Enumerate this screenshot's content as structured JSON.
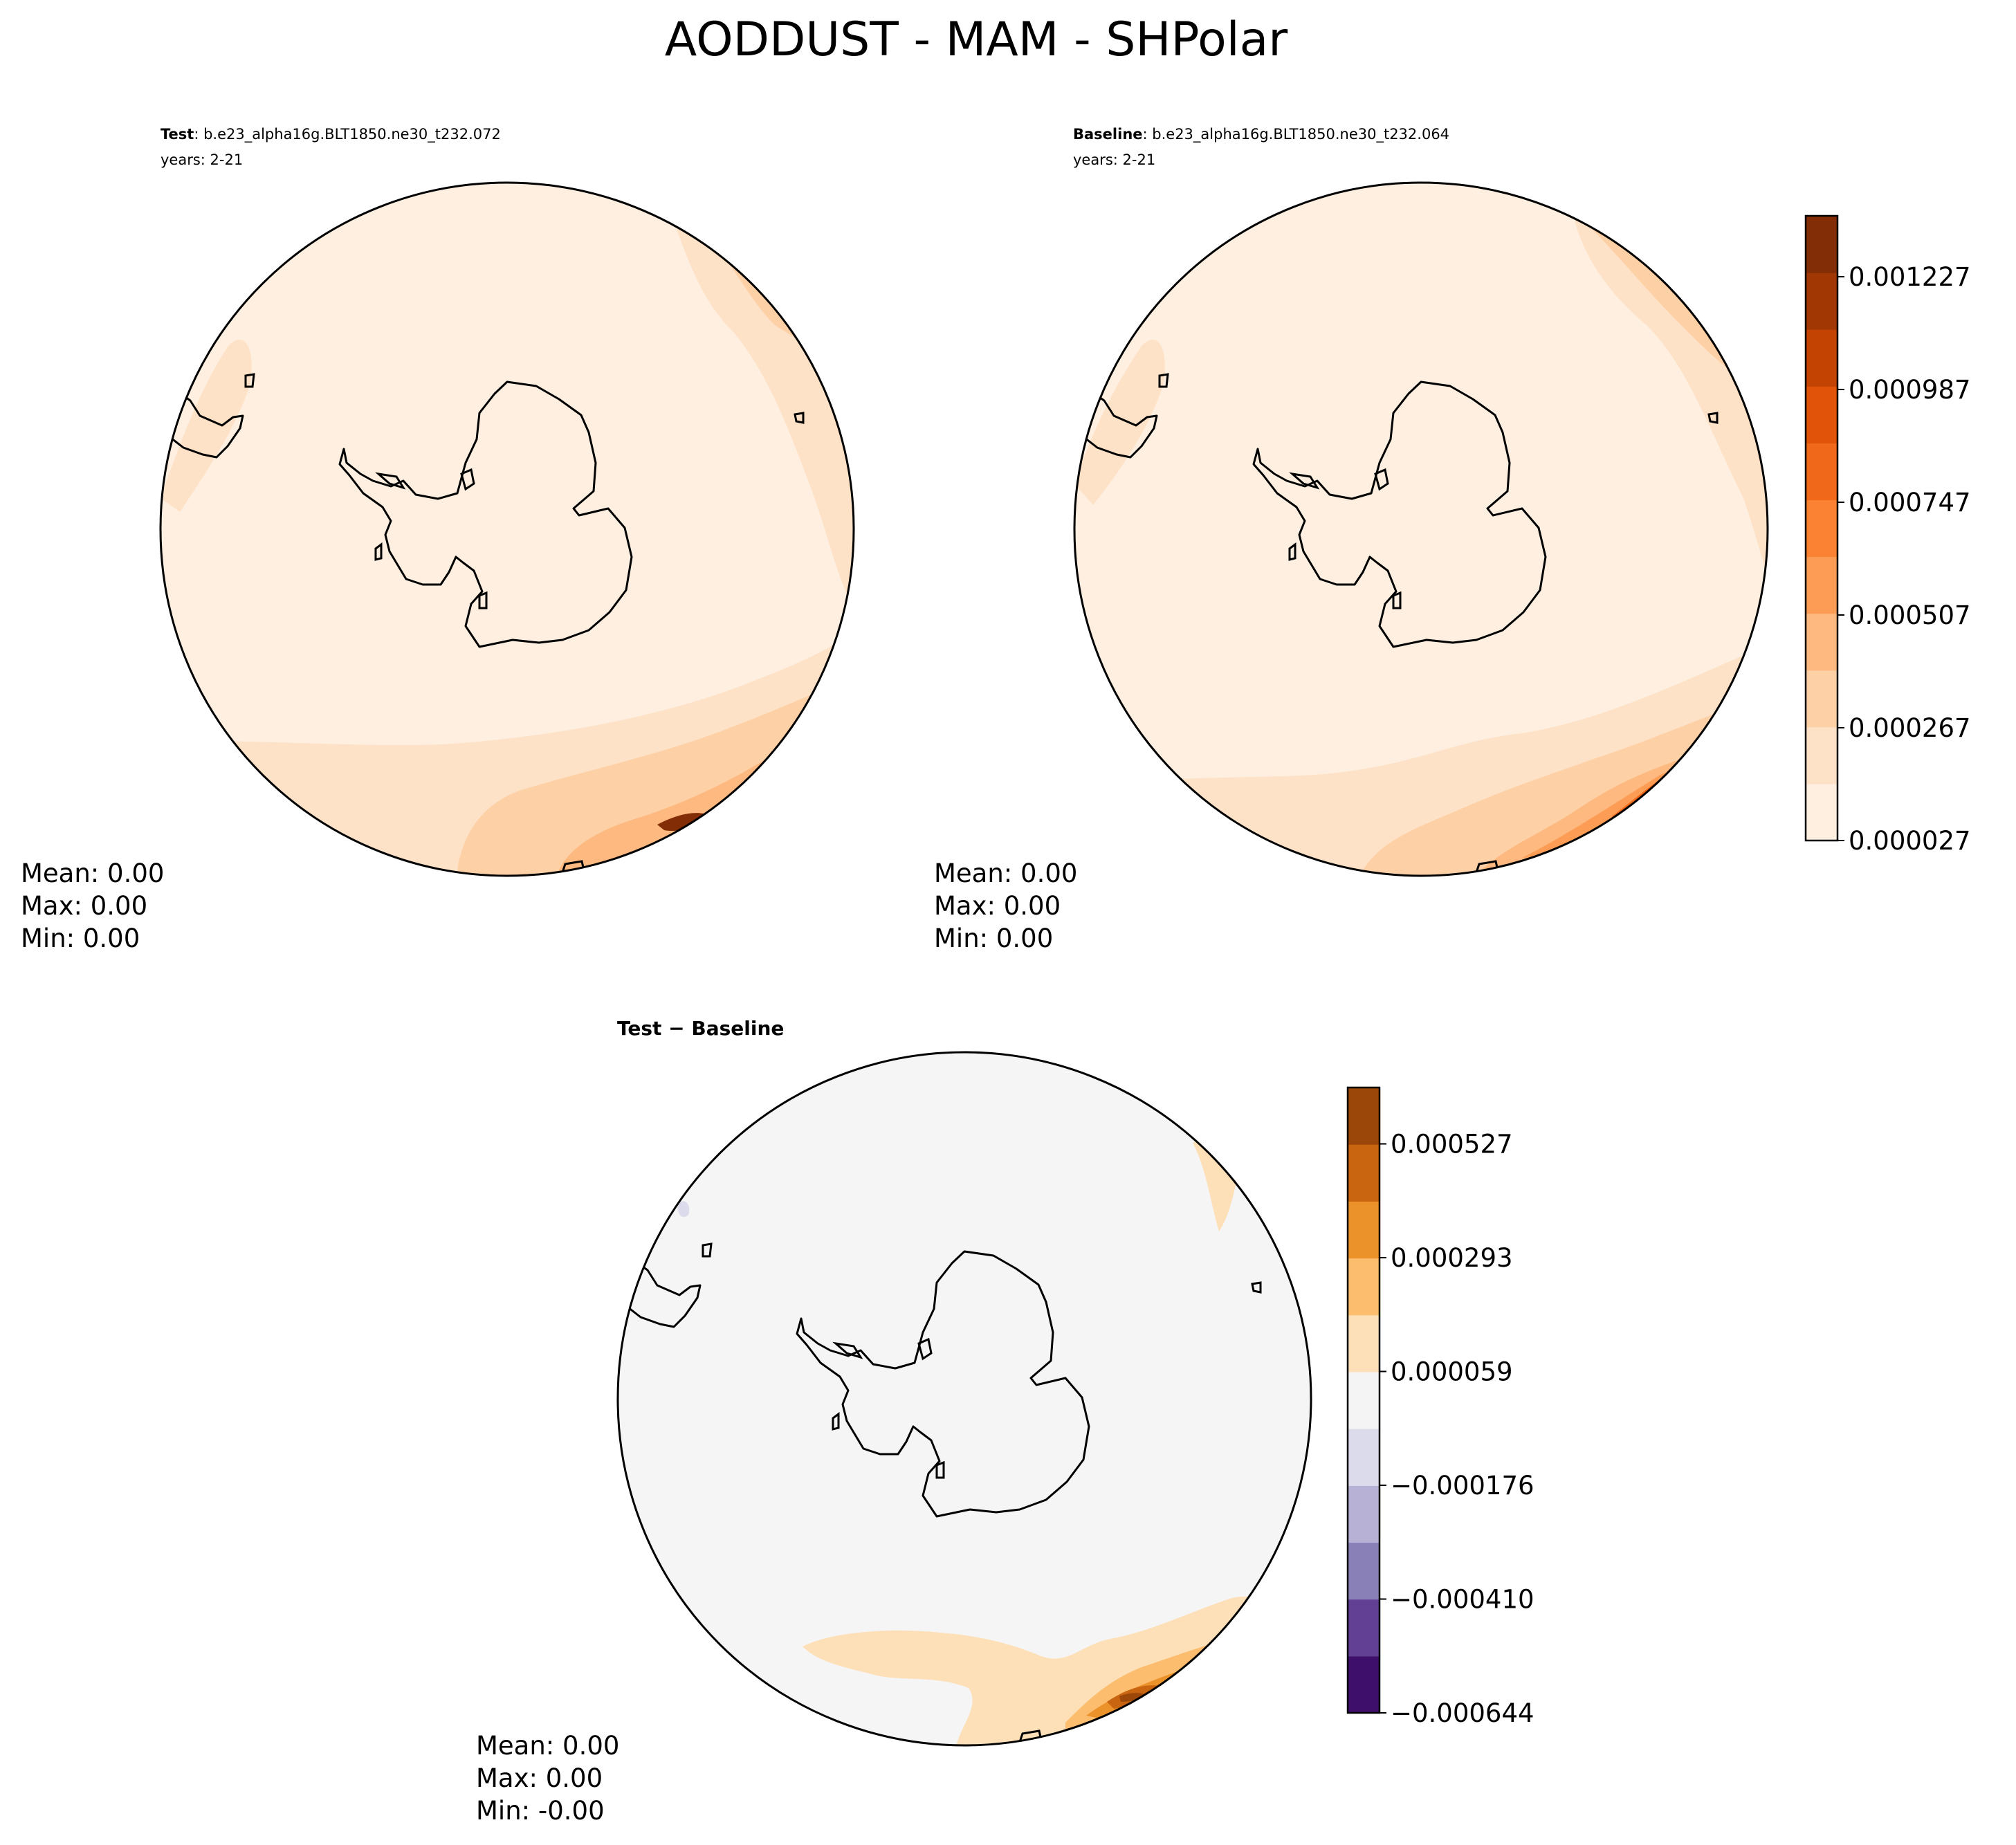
{
  "figure": {
    "title": "AODDUST - MAM - SHPolar"
  },
  "panels": [
    {
      "id": "test",
      "title_bold": "Test",
      "title_rest": ": b.e23_alpha16g.BLT1850.ne30_t232.072",
      "subtitle": "years: 2-21",
      "stats": {
        "mean": "Mean:  0.00",
        "max": "Max:  0.00",
        "min": "Min:  0.00"
      }
    },
    {
      "id": "baseline",
      "title_bold": "Baseline",
      "title_rest": ": b.e23_alpha16g.BLT1850.ne30_t232.064",
      "subtitle": "years: 2-21",
      "stats": {
        "mean": "Mean:  0.00",
        "max": "Max:  0.00",
        "min": "Min:  0.00"
      }
    },
    {
      "id": "diff",
      "title_bold": "Test − Baseline",
      "title_rest": "",
      "subtitle": "",
      "stats": {
        "mean": "Mean:  0.00",
        "max": "Max:  0.00",
        "min": "Min: -0.00"
      }
    }
  ],
  "colorbars": {
    "main": {
      "ticks": [
        "0.000027",
        "0.000267",
        "0.000507",
        "0.000747",
        "0.000987",
        "0.001227"
      ],
      "colors": [
        "#feefe0",
        "#fee2c8",
        "#fdd0a6",
        "#fdb97f",
        "#fd9d55",
        "#fb8232",
        "#f0681a",
        "#e05309",
        "#c24302",
        "#a13803",
        "#822d05"
      ]
    },
    "diff": {
      "ticks": [
        "−0.000644",
        "−0.000410",
        "−0.000176",
        "0.000059",
        "0.000293",
        "0.000527"
      ],
      "colors": [
        "#3f0f6c",
        "#624093",
        "#8a80b8",
        "#b8b1d6",
        "#dcdbec",
        "#f4f4f4",
        "#fde0b8",
        "#fdbd6f",
        "#ec922b",
        "#c96510",
        "#9a4709"
      ]
    }
  },
  "colors": {
    "land_outline": "#000000",
    "main_background": "#feefe0",
    "diff_background": "#f5f5f5"
  }
}
